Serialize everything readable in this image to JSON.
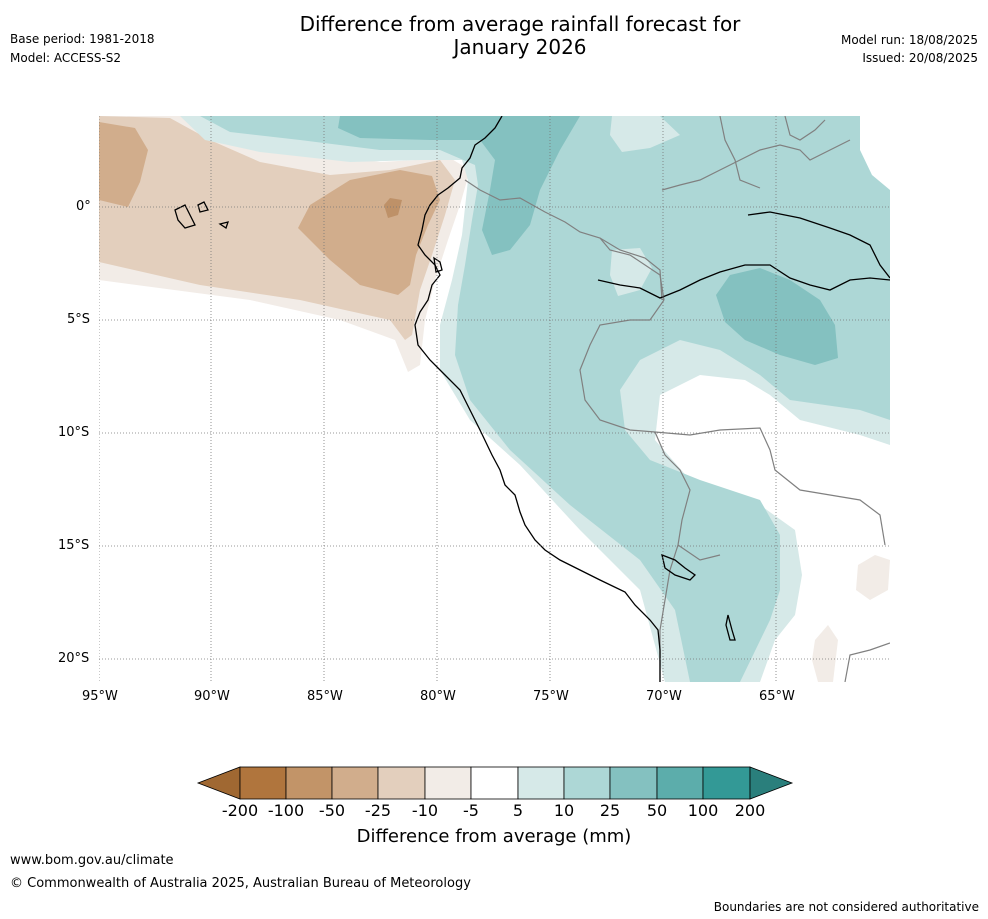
{
  "header": {
    "base_period": "Base period: 1981-2018",
    "model": "Model: ACCESS-S2",
    "title_line1": "Difference from average rainfall forecast for",
    "title_line2": "January 2026",
    "model_run": "Model run: 18/08/2025",
    "issued": "Issued: 20/08/2025"
  },
  "map": {
    "lat_labels": [
      "0°",
      "5°S",
      "10°S",
      "15°S",
      "20°S"
    ],
    "lon_labels": [
      "95°W",
      "90°W",
      "85°W",
      "80°W",
      "75°W",
      "70°W",
      "65°W"
    ],
    "colors": {
      "dry_strong": "#a86d34",
      "dry_medium": "#d1ad8c",
      "dry_light": "#e3cfbd",
      "dry_faint": "#f2ece7",
      "wet_faint": "#d6e9e8",
      "wet_light": "#add7d6",
      "wet_medium": "#84c1c0",
      "coast": "#000000",
      "border": "#808080"
    }
  },
  "colorbar": {
    "title": "Difference from average (mm)",
    "ticks": [
      "-200",
      "-100",
      "-50",
      "-25",
      "-10",
      "-5",
      "5",
      "10",
      "25",
      "50",
      "100",
      "200"
    ],
    "colors": [
      "#a06832",
      "#b0753d",
      "#c29468",
      "#d1ad8c",
      "#e3cfbd",
      "#f2ece7",
      "#ffffff",
      "#d6e9e8",
      "#add7d6",
      "#84c1c0",
      "#5cadab",
      "#339996",
      "#2a7f7c"
    ]
  },
  "footer": {
    "url": "www.bom.gov.au/climate",
    "copyright": "© Commonwealth of Australia 2025, Australian Bureau of Meteorology",
    "disclaimer": "Boundaries are not considered authoritative"
  }
}
